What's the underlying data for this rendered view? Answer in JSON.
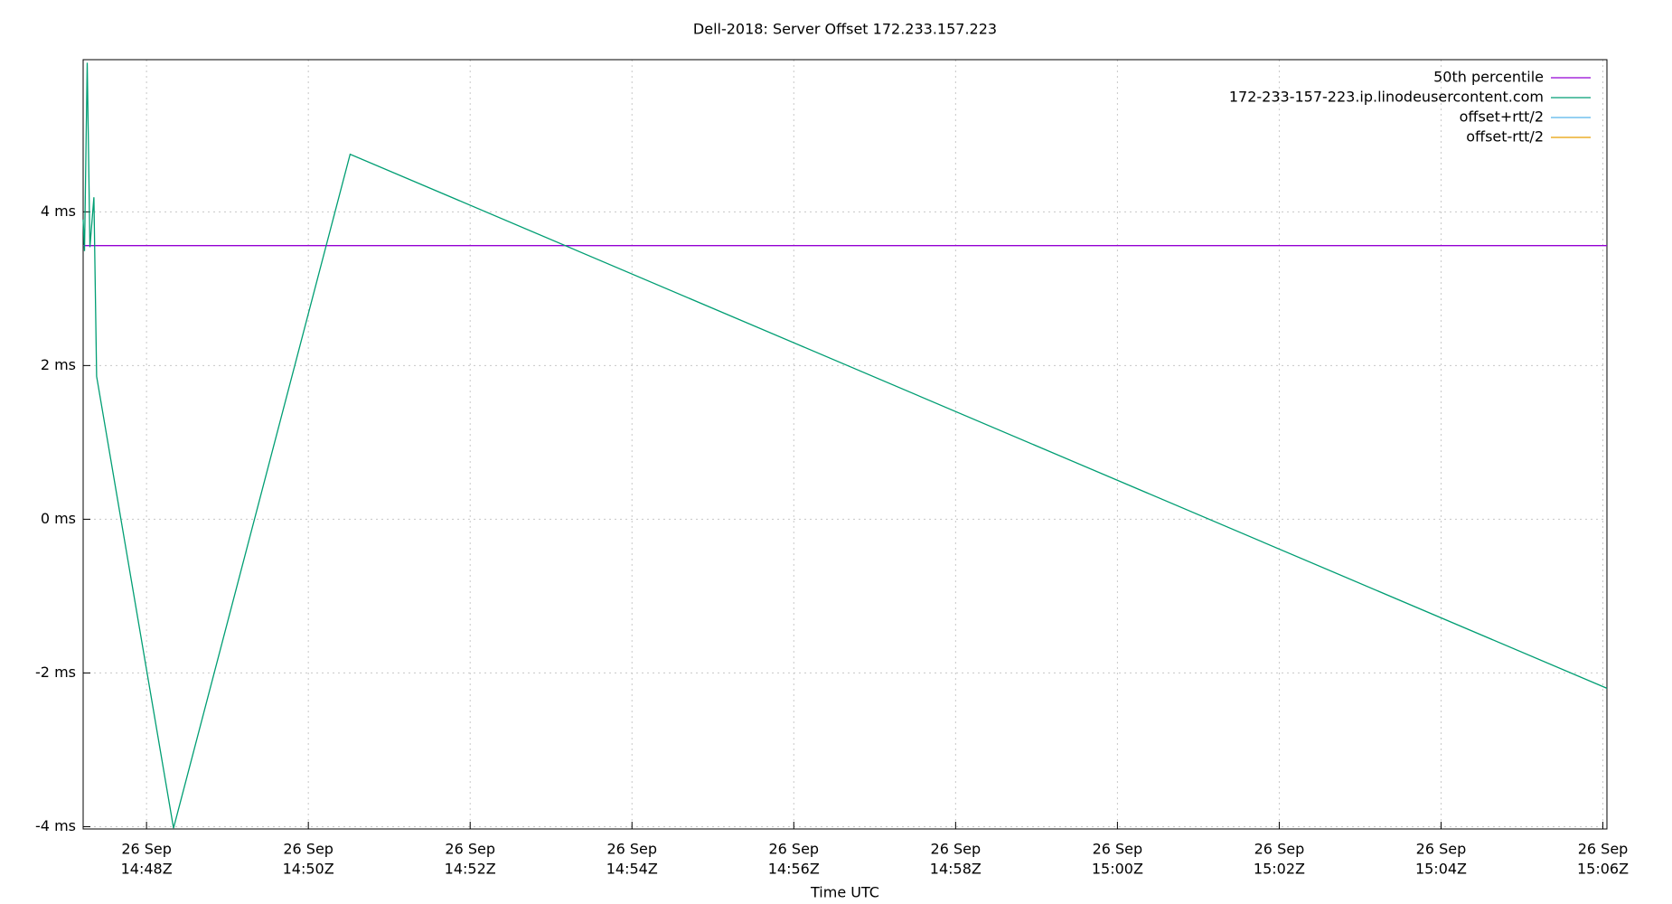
{
  "chart_data": {
    "type": "line",
    "title": "Dell-2018: Server Offset 172.233.157.223",
    "x_label": "Time UTC",
    "x": [
      "14:47:13",
      "14:47:14",
      "14:47:16",
      "14:47:18",
      "14:47:21",
      "14:47:23",
      "14:48:20",
      "14:50:31",
      "15:06:03"
    ],
    "series": [
      {
        "name": "50th percentile",
        "color": "#9400d3",
        "values": [
          3.56,
          3.56,
          3.56,
          3.56,
          3.56,
          3.56,
          3.56,
          3.56,
          3.56
        ]
      },
      {
        "name": "172-233-157-223.ip.linodeusercontent.com",
        "color": "#009e73",
        "values": [
          3.9,
          3.49,
          5.94,
          3.54,
          4.19,
          1.86,
          -4.02,
          4.75,
          -2.2
        ]
      },
      {
        "name": "offset+rtt/2",
        "color": "#56b4e9",
        "values": [
          null,
          null,
          null,
          null,
          null,
          null,
          null,
          null,
          null
        ]
      },
      {
        "name": "offset-rtt/2",
        "color": "#e69f00",
        "values": [
          null,
          null,
          null,
          null,
          null,
          null,
          null,
          null,
          null
        ]
      }
    ],
    "xlim": [
      "14:47:13",
      "15:06:03"
    ],
    "xticks": [
      {
        "value": "14:48",
        "label": [
          "26 Sep",
          "14:48Z"
        ]
      },
      {
        "value": "14:50",
        "label": [
          "26 Sep",
          "14:50Z"
        ]
      },
      {
        "value": "14:52",
        "label": [
          "26 Sep",
          "14:52Z"
        ]
      },
      {
        "value": "14:54",
        "label": [
          "26 Sep",
          "14:54Z"
        ]
      },
      {
        "value": "14:56",
        "label": [
          "26 Sep",
          "14:56Z"
        ]
      },
      {
        "value": "14:58",
        "label": [
          "26 Sep",
          "14:58Z"
        ]
      },
      {
        "value": "15:00",
        "label": [
          "26 Sep",
          "15:00Z"
        ]
      },
      {
        "value": "15:02",
        "label": [
          "26 Sep",
          "15:02Z"
        ]
      },
      {
        "value": "15:04",
        "label": [
          "26 Sep",
          "15:04Z"
        ]
      },
      {
        "value": "15:06",
        "label": [
          "26 Sep",
          "15:06Z"
        ]
      }
    ],
    "ylim": [
      -4.03,
      5.98
    ],
    "yticks": [
      {
        "value": -4,
        "label": "-4 ms"
      },
      {
        "value": -2,
        "label": "-2 ms"
      },
      {
        "value": 0,
        "label": "0 ms"
      },
      {
        "value": 2,
        "label": "2 ms"
      },
      {
        "value": 4,
        "label": "4 ms"
      }
    ],
    "grid": true,
    "legend": "top-right"
  }
}
